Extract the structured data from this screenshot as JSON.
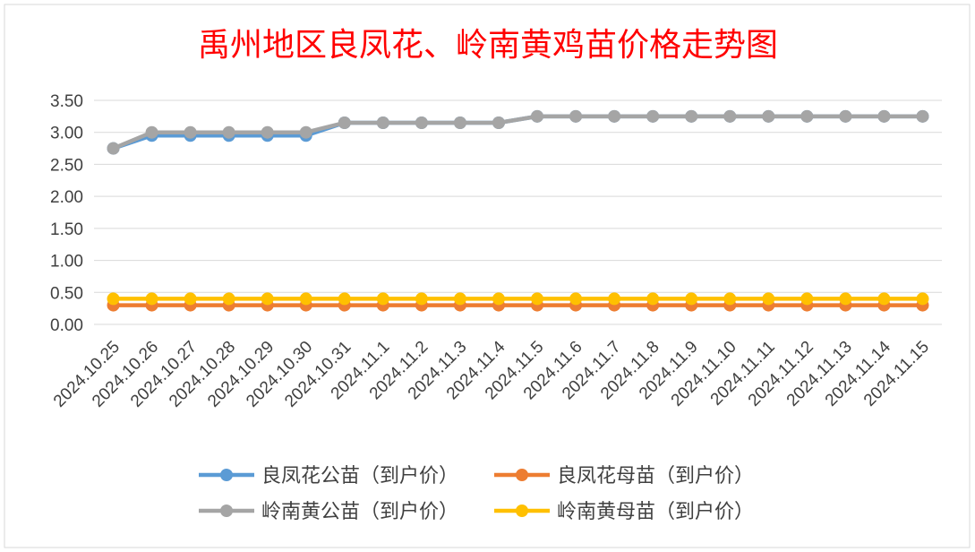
{
  "chart_data": {
    "type": "line",
    "title": "禹州地区良凤花、岭南黄鸡苗价格走势图",
    "xlabel": "",
    "ylabel": "",
    "ylim": [
      0,
      3.5
    ],
    "yticks": [
      "0.00",
      "0.50",
      "1.00",
      "1.50",
      "2.00",
      "2.50",
      "3.00",
      "3.50"
    ],
    "grid": true,
    "legend": "bottom",
    "categories": [
      "2024.10.25",
      "2024.10.26",
      "2024.10.27",
      "2024.10.28",
      "2024.10.29",
      "2024.10.30",
      "2024.10.31",
      "2024.11.1",
      "2024.11.2",
      "2024.11.3",
      "2024.11.4",
      "2024.11.5",
      "2024.11.6",
      "2024.11.7",
      "2024.11.8",
      "2024.11.9",
      "2024.11.10",
      "2024.11.11",
      "2024.11.12",
      "2024.11.13",
      "2024.11.14",
      "2024.11.15"
    ],
    "series": [
      {
        "name": "良凤花公苗（到户价）",
        "color": "#5b9bd5",
        "values": [
          2.75,
          2.95,
          2.95,
          2.95,
          2.95,
          2.95,
          3.15,
          3.15,
          3.15,
          3.15,
          3.15,
          3.25,
          3.25,
          3.25,
          3.25,
          3.25,
          3.25,
          3.25,
          3.25,
          3.25,
          3.25,
          3.25
        ]
      },
      {
        "name": "良凤花母苗（到户价）",
        "color": "#ed7d31",
        "values": [
          0.3,
          0.3,
          0.3,
          0.3,
          0.3,
          0.3,
          0.3,
          0.3,
          0.3,
          0.3,
          0.3,
          0.3,
          0.3,
          0.3,
          0.3,
          0.3,
          0.3,
          0.3,
          0.3,
          0.3,
          0.3,
          0.3
        ]
      },
      {
        "name": "岭南黄公苗（到户价）",
        "color": "#a5a5a5",
        "values": [
          2.75,
          3.0,
          3.0,
          3.0,
          3.0,
          3.0,
          3.15,
          3.15,
          3.15,
          3.15,
          3.15,
          3.25,
          3.25,
          3.25,
          3.25,
          3.25,
          3.25,
          3.25,
          3.25,
          3.25,
          3.25,
          3.25
        ]
      },
      {
        "name": "岭南黄母苗（到户价）",
        "color": "#ffc000",
        "values": [
          0.4,
          0.4,
          0.4,
          0.4,
          0.4,
          0.4,
          0.4,
          0.4,
          0.4,
          0.4,
          0.4,
          0.4,
          0.4,
          0.4,
          0.4,
          0.4,
          0.4,
          0.4,
          0.4,
          0.4,
          0.4,
          0.4
        ]
      }
    ],
    "title_color": "#ff0000"
  }
}
